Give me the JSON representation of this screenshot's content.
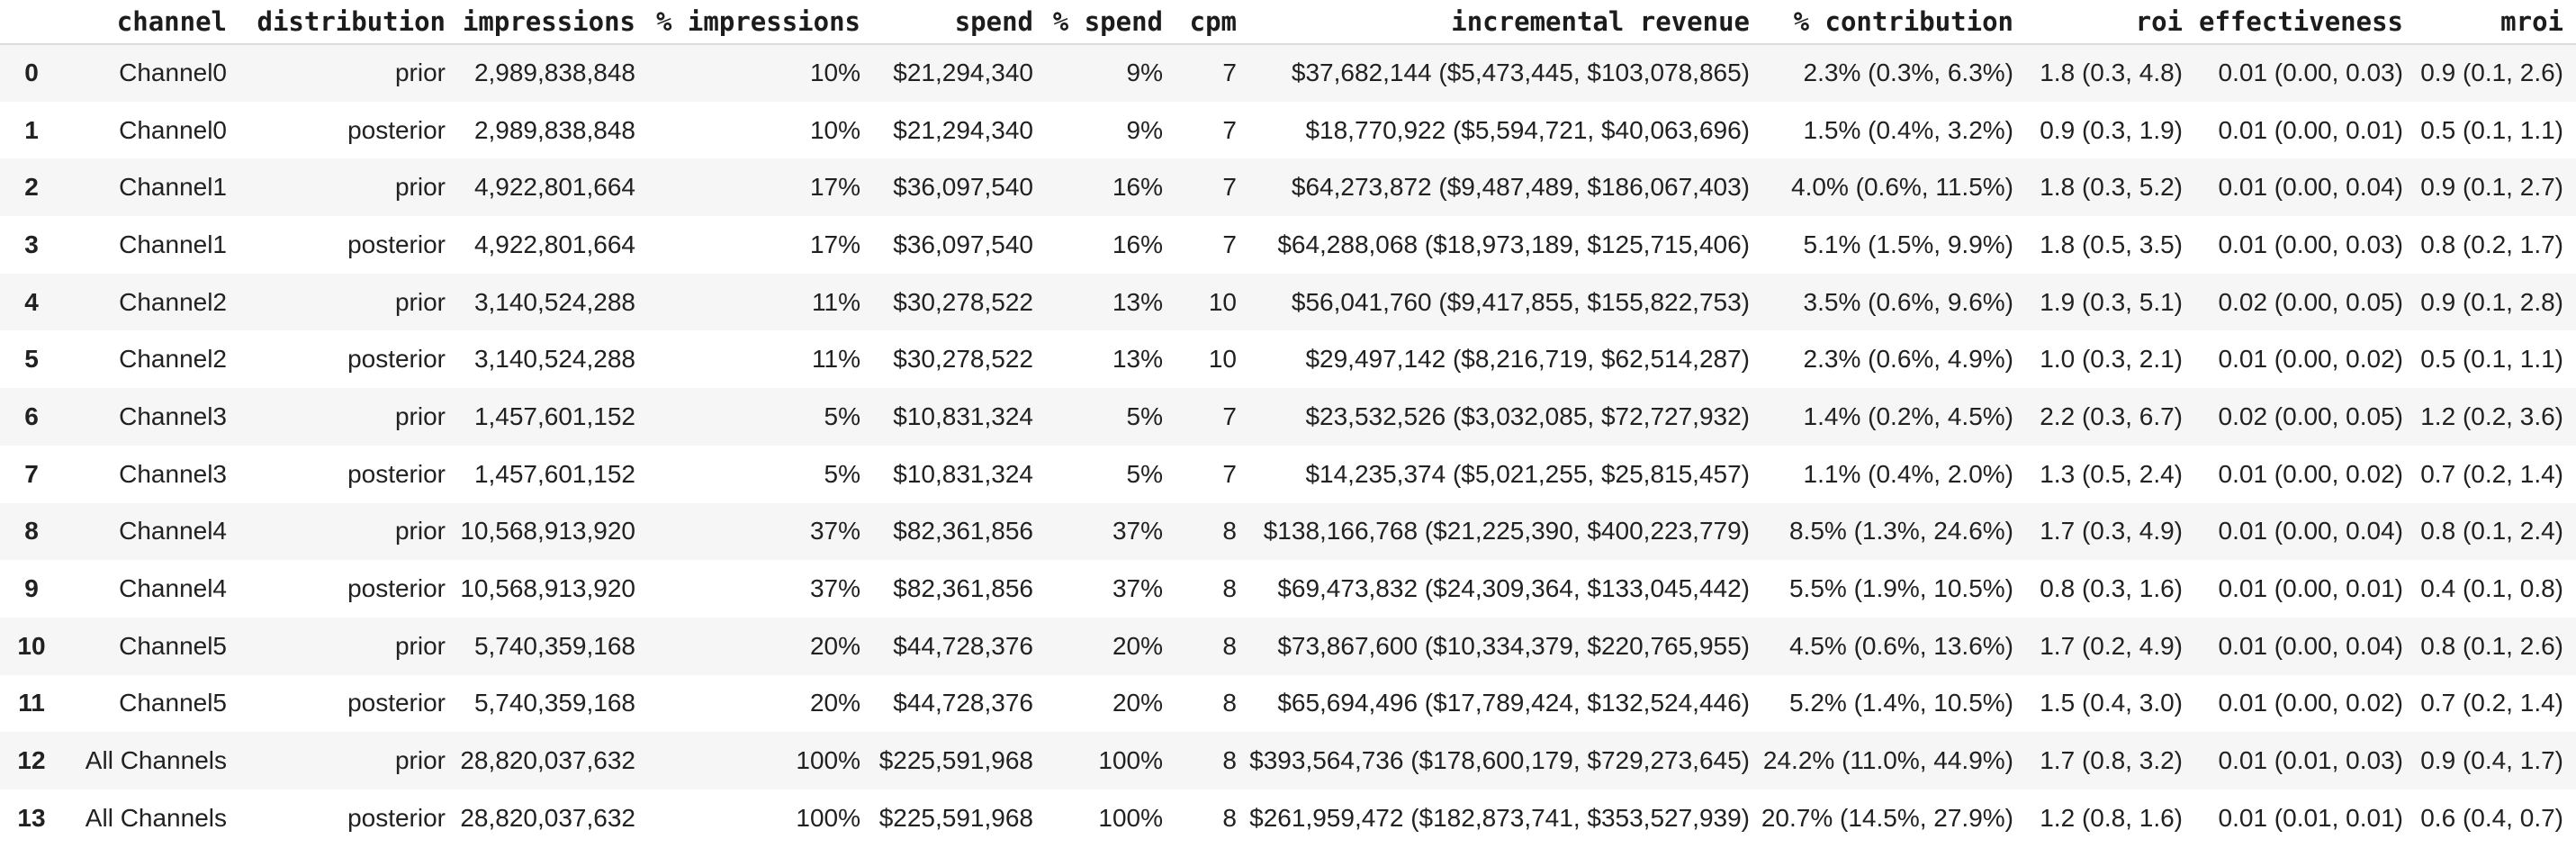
{
  "colors": {
    "background": "#ffffff",
    "stripe": "#f6f6f6",
    "header_border": "#dcdcdc",
    "text": "#212121"
  },
  "table": {
    "columns": [
      {
        "key": "index",
        "label": ""
      },
      {
        "key": "channel",
        "label": "channel"
      },
      {
        "key": "distribution",
        "label": "distribution"
      },
      {
        "key": "impressions",
        "label": "impressions"
      },
      {
        "key": "pct-impressions",
        "label": "% impressions"
      },
      {
        "key": "spend",
        "label": "spend"
      },
      {
        "key": "pct-spend",
        "label": "% spend"
      },
      {
        "key": "cpm",
        "label": "cpm"
      },
      {
        "key": "incremental-revenue",
        "label": "incremental revenue"
      },
      {
        "key": "pct-contribution",
        "label": "% contribution"
      },
      {
        "key": "roi",
        "label": "roi"
      },
      {
        "key": "effectiveness",
        "label": "effectiveness"
      },
      {
        "key": "mroi",
        "label": "mroi"
      }
    ],
    "rows": [
      [
        "0",
        "Channel0",
        "prior",
        "2,989,838,848",
        "10%",
        "$21,294,340",
        "9%",
        "7",
        "$37,682,144 ($5,473,445, $103,078,865)",
        "2.3% (0.3%, 6.3%)",
        "1.8 (0.3, 4.8)",
        "0.01 (0.00, 0.03)",
        "0.9 (0.1, 2.6)"
      ],
      [
        "1",
        "Channel0",
        "posterior",
        "2,989,838,848",
        "10%",
        "$21,294,340",
        "9%",
        "7",
        "$18,770,922 ($5,594,721, $40,063,696)",
        "1.5% (0.4%, 3.2%)",
        "0.9 (0.3, 1.9)",
        "0.01 (0.00, 0.01)",
        "0.5 (0.1, 1.1)"
      ],
      [
        "2",
        "Channel1",
        "prior",
        "4,922,801,664",
        "17%",
        "$36,097,540",
        "16%",
        "7",
        "$64,273,872 ($9,487,489, $186,067,403)",
        "4.0% (0.6%, 11.5%)",
        "1.8 (0.3, 5.2)",
        "0.01 (0.00, 0.04)",
        "0.9 (0.1, 2.7)"
      ],
      [
        "3",
        "Channel1",
        "posterior",
        "4,922,801,664",
        "17%",
        "$36,097,540",
        "16%",
        "7",
        "$64,288,068 ($18,973,189, $125,715,406)",
        "5.1% (1.5%, 9.9%)",
        "1.8 (0.5, 3.5)",
        "0.01 (0.00, 0.03)",
        "0.8 (0.2, 1.7)"
      ],
      [
        "4",
        "Channel2",
        "prior",
        "3,140,524,288",
        "11%",
        "$30,278,522",
        "13%",
        "10",
        "$56,041,760 ($9,417,855, $155,822,753)",
        "3.5% (0.6%, 9.6%)",
        "1.9 (0.3, 5.1)",
        "0.02 (0.00, 0.05)",
        "0.9 (0.1, 2.8)"
      ],
      [
        "5",
        "Channel2",
        "posterior",
        "3,140,524,288",
        "11%",
        "$30,278,522",
        "13%",
        "10",
        "$29,497,142 ($8,216,719, $62,514,287)",
        "2.3% (0.6%, 4.9%)",
        "1.0 (0.3, 2.1)",
        "0.01 (0.00, 0.02)",
        "0.5 (0.1, 1.1)"
      ],
      [
        "6",
        "Channel3",
        "prior",
        "1,457,601,152",
        "5%",
        "$10,831,324",
        "5%",
        "7",
        "$23,532,526 ($3,032,085, $72,727,932)",
        "1.4% (0.2%, 4.5%)",
        "2.2 (0.3, 6.7)",
        "0.02 (0.00, 0.05)",
        "1.2 (0.2, 3.6)"
      ],
      [
        "7",
        "Channel3",
        "posterior",
        "1,457,601,152",
        "5%",
        "$10,831,324",
        "5%",
        "7",
        "$14,235,374 ($5,021,255, $25,815,457)",
        "1.1% (0.4%, 2.0%)",
        "1.3 (0.5, 2.4)",
        "0.01 (0.00, 0.02)",
        "0.7 (0.2, 1.4)"
      ],
      [
        "8",
        "Channel4",
        "prior",
        "10,568,913,920",
        "37%",
        "$82,361,856",
        "37%",
        "8",
        "$138,166,768 ($21,225,390, $400,223,779)",
        "8.5% (1.3%, 24.6%)",
        "1.7 (0.3, 4.9)",
        "0.01 (0.00, 0.04)",
        "0.8 (0.1, 2.4)"
      ],
      [
        "9",
        "Channel4",
        "posterior",
        "10,568,913,920",
        "37%",
        "$82,361,856",
        "37%",
        "8",
        "$69,473,832 ($24,309,364, $133,045,442)",
        "5.5% (1.9%, 10.5%)",
        "0.8 (0.3, 1.6)",
        "0.01 (0.00, 0.01)",
        "0.4 (0.1, 0.8)"
      ],
      [
        "10",
        "Channel5",
        "prior",
        "5,740,359,168",
        "20%",
        "$44,728,376",
        "20%",
        "8",
        "$73,867,600 ($10,334,379, $220,765,955)",
        "4.5% (0.6%, 13.6%)",
        "1.7 (0.2, 4.9)",
        "0.01 (0.00, 0.04)",
        "0.8 (0.1, 2.6)"
      ],
      [
        "11",
        "Channel5",
        "posterior",
        "5,740,359,168",
        "20%",
        "$44,728,376",
        "20%",
        "8",
        "$65,694,496 ($17,789,424, $132,524,446)",
        "5.2% (1.4%, 10.5%)",
        "1.5 (0.4, 3.0)",
        "0.01 (0.00, 0.02)",
        "0.7 (0.2, 1.4)"
      ],
      [
        "12",
        "All Channels",
        "prior",
        "28,820,037,632",
        "100%",
        "$225,591,968",
        "100%",
        "8",
        "$393,564,736 ($178,600,179, $729,273,645)",
        "24.2% (11.0%, 44.9%)",
        "1.7 (0.8, 3.2)",
        "0.01 (0.01, 0.03)",
        "0.9 (0.4, 1.7)"
      ],
      [
        "13",
        "All Channels",
        "posterior",
        "28,820,037,632",
        "100%",
        "$225,591,968",
        "100%",
        "8",
        "$261,959,472 ($182,873,741, $353,527,939)",
        "20.7% (14.5%, 27.9%)",
        "1.2 (0.8, 1.6)",
        "0.01 (0.01, 0.01)",
        "0.6 (0.4, 0.7)"
      ]
    ]
  }
}
